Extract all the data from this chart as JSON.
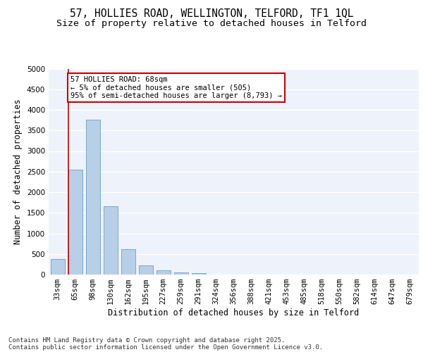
{
  "title_line1": "57, HOLLIES ROAD, WELLINGTON, TELFORD, TF1 1QL",
  "title_line2": "Size of property relative to detached houses in Telford",
  "xlabel": "Distribution of detached houses by size in Telford",
  "ylabel": "Number of detached properties",
  "categories": [
    "33sqm",
    "65sqm",
    "98sqm",
    "130sqm",
    "162sqm",
    "195sqm",
    "227sqm",
    "259sqm",
    "291sqm",
    "324sqm",
    "356sqm",
    "388sqm",
    "421sqm",
    "453sqm",
    "485sqm",
    "518sqm",
    "550sqm",
    "582sqm",
    "614sqm",
    "647sqm",
    "679sqm"
  ],
  "values": [
    380,
    2540,
    3760,
    1650,
    620,
    220,
    100,
    55,
    30,
    0,
    0,
    0,
    0,
    0,
    0,
    0,
    0,
    0,
    0,
    0,
    0
  ],
  "bar_color": "#b8cfe8",
  "bar_edge_color": "#6b9ec8",
  "vline_color": "#cc0000",
  "annotation_text": "57 HOLLIES ROAD: 68sqm\n← 5% of detached houses are smaller (505)\n95% of semi-detached houses are larger (8,793) →",
  "annotation_box_color": "#cc0000",
  "ylim": [
    0,
    5000
  ],
  "yticks": [
    0,
    500,
    1000,
    1500,
    2000,
    2500,
    3000,
    3500,
    4000,
    4500,
    5000
  ],
  "bg_color": "#eef2fa",
  "grid_color": "#ffffff",
  "footer_line1": "Contains HM Land Registry data © Crown copyright and database right 2025.",
  "footer_line2": "Contains public sector information licensed under the Open Government Licence v3.0.",
  "title_fontsize": 10.5,
  "subtitle_fontsize": 9.5,
  "axis_label_fontsize": 8.5,
  "tick_fontsize": 7.5,
  "annotation_fontsize": 7.5,
  "footer_fontsize": 6.5
}
